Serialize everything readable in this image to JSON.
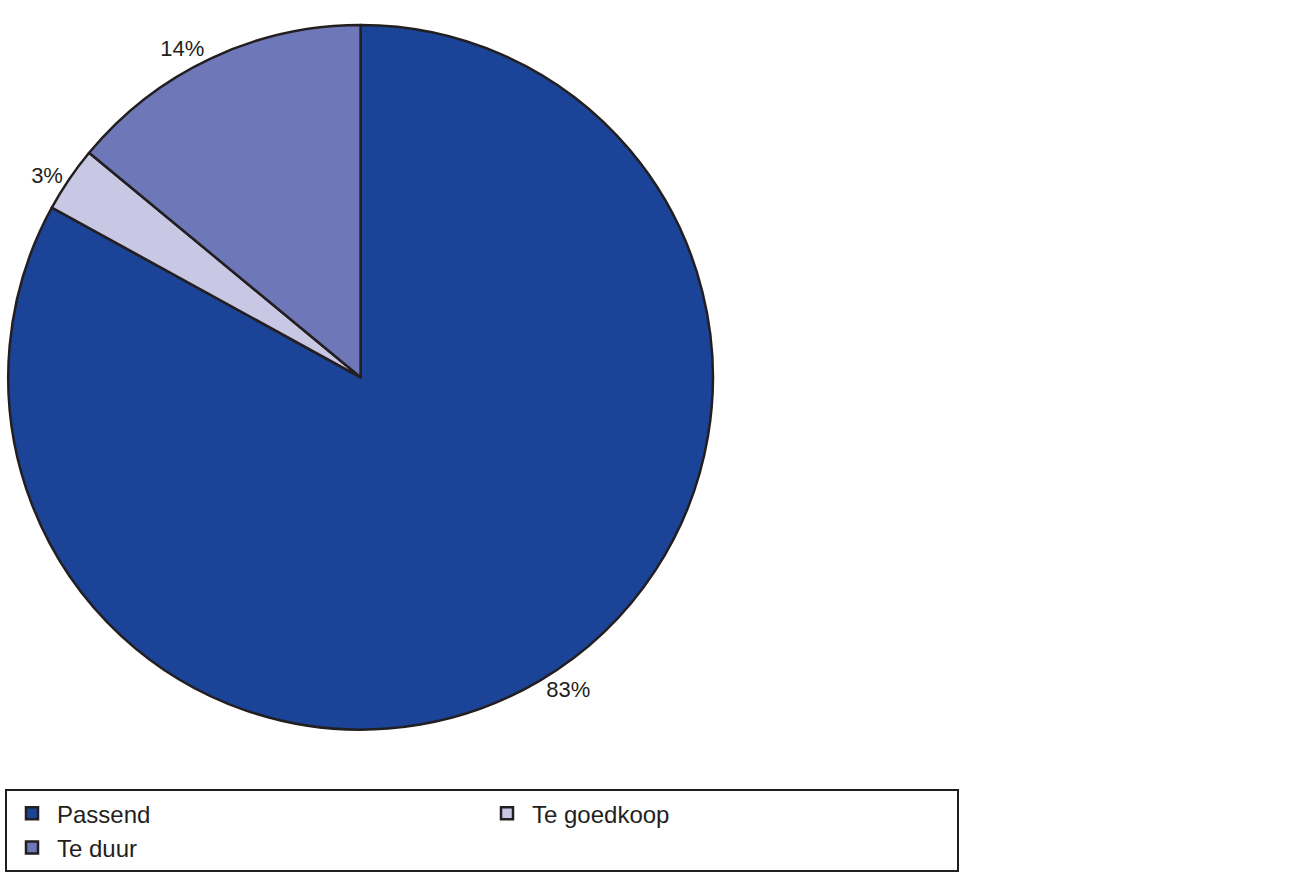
{
  "chart_data": {
    "type": "pie",
    "categories": [
      "Passend",
      "Te goedkoop",
      "Te duur"
    ],
    "values": [
      83,
      3,
      14
    ],
    "value_labels": [
      "83%",
      "3%",
      "14%"
    ],
    "colors": [
      "#1b4397",
      "#c8c8e4",
      "#6e78b8"
    ],
    "data_labels": true,
    "legend": "bottom"
  }
}
